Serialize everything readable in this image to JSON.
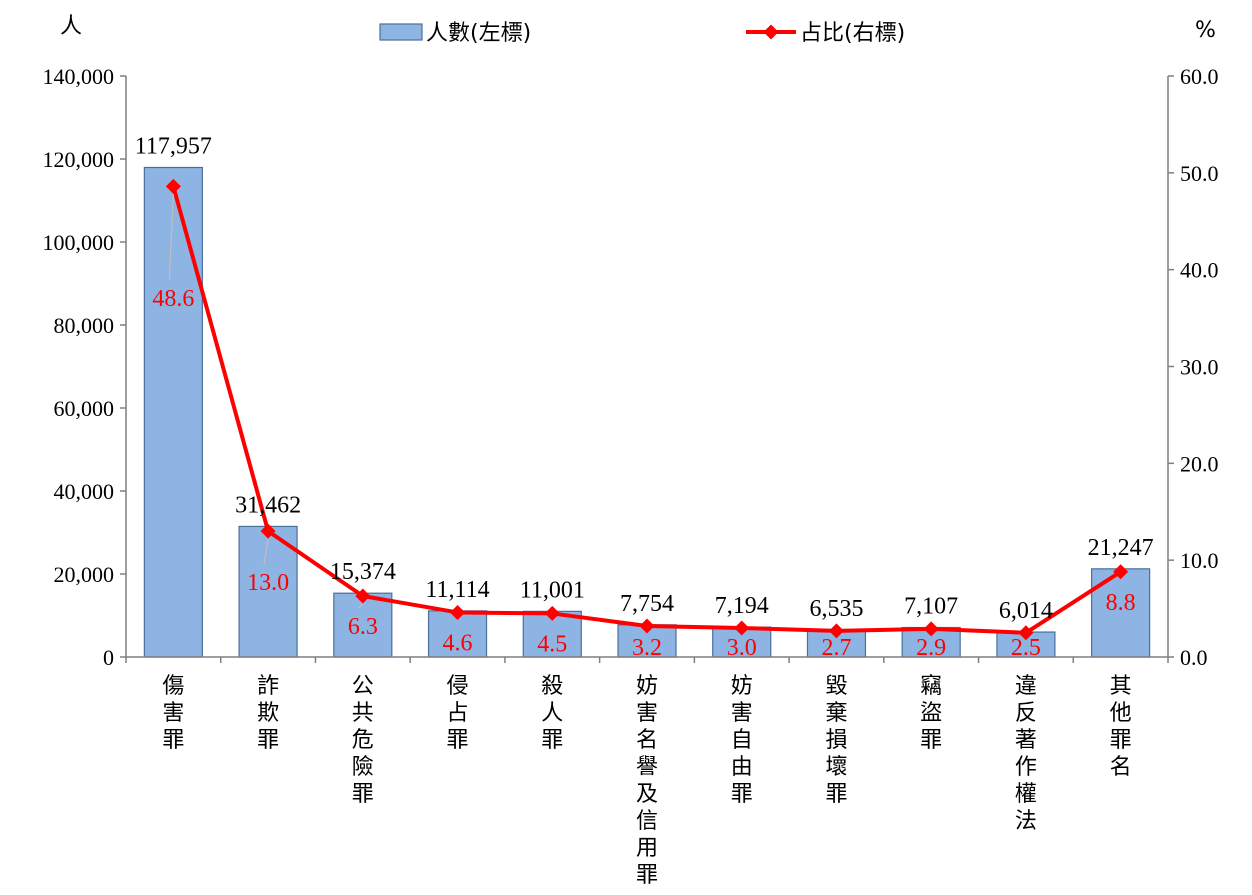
{
  "chart_data": {
    "type": "bar+line",
    "categories": [
      "傷害罪",
      "詐欺罪",
      "公共危險罪",
      "侵占罪",
      "殺人罪",
      "妨害名譽及信用罪",
      "妨害自由罪",
      "毀棄損壞罪",
      "竊盜罪",
      "違反著作權法",
      "其他罪名"
    ],
    "series": [
      {
        "name": "人數(左標)",
        "kind": "bar",
        "axis": "left",
        "color": "#8EB4E3",
        "values": [
          117957,
          31462,
          15374,
          11114,
          11001,
          7754,
          7194,
          6535,
          7107,
          6014,
          21247
        ],
        "labels": [
          "117,957",
          "31,462",
          "15,374",
          "11,114",
          "11,001",
          "7,754",
          "7,194",
          "6,535",
          "7,107",
          "6,014",
          "21,247"
        ]
      },
      {
        "name": "占比(右標)",
        "kind": "line",
        "axis": "right",
        "color": "#FF0000",
        "values": [
          48.6,
          13.0,
          6.3,
          4.6,
          4.5,
          3.2,
          3.0,
          2.7,
          2.9,
          2.5,
          8.8
        ],
        "labels": [
          "48.6",
          "13.0",
          "6.3",
          "4.6",
          "4.5",
          "3.2",
          "3.0",
          "2.7",
          "2.9",
          "2.5",
          "8.8"
        ]
      }
    ],
    "y_left": {
      "unit": "人",
      "range": [
        0,
        140000
      ],
      "ticks": [
        0,
        20000,
        40000,
        60000,
        80000,
        100000,
        120000,
        140000
      ],
      "tick_labels": [
        "0",
        "20,000",
        "40,000",
        "60,000",
        "80,000",
        "100,000",
        "120,000",
        "140,000"
      ]
    },
    "y_right": {
      "unit": "%",
      "range": [
        0,
        60
      ],
      "ticks": [
        0,
        10,
        20,
        30,
        40,
        50,
        60
      ],
      "tick_labels": [
        "0.0",
        "10.0",
        "20.0",
        "30.0",
        "40.0",
        "50.0",
        "60.0"
      ]
    },
    "legend_position": "top",
    "grid": false
  }
}
